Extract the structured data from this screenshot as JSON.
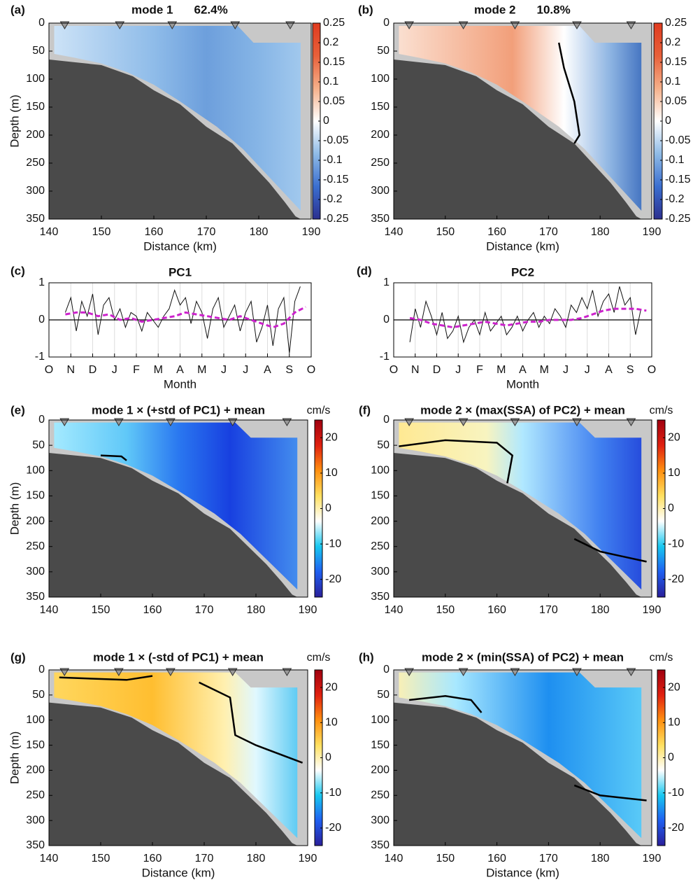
{
  "chart_data": [
    {
      "type": "contour",
      "panel": "(a)",
      "title": "mode 1",
      "variance": "62.4%",
      "xlabel": "Distance (km)",
      "ylabel": "Depth (m)",
      "xlim": [
        140,
        190
      ],
      "xticks": [
        140,
        150,
        160,
        170,
        180,
        190
      ],
      "ylim": [
        0,
        350
      ],
      "y_inverted": true,
      "yticks": [
        0,
        50,
        100,
        150,
        200,
        250,
        300,
        350
      ],
      "stations": [
        143,
        153.5,
        163.5,
        175.5,
        186
      ],
      "colorbar": {
        "lim": [
          -0.25,
          0.25
        ],
        "ticks": [
          -0.25,
          -0.2,
          -0.15,
          -0.1,
          -0.05,
          0,
          0.05,
          0.1,
          0.15,
          0.2,
          0.25
        ],
        "colors": [
          "#2b2f8f",
          "#3b6fd0",
          "#8fbbe6",
          "#ffffff",
          "#f5b08a",
          "#e8603a",
          "#e03b1f"
        ]
      }
    },
    {
      "type": "contour",
      "panel": "(b)",
      "title": "mode 2",
      "variance": "10.8%",
      "xlabel": "Distance (km)",
      "xlim": [
        140,
        190
      ],
      "xticks": [
        140,
        150,
        160,
        170,
        180,
        190
      ],
      "ylim": [
        0,
        350
      ],
      "y_inverted": true,
      "yticks": [
        0,
        50,
        100,
        150,
        200,
        250,
        300,
        350
      ],
      "stations": [
        143,
        153.5,
        163.5,
        175.5,
        186
      ],
      "colorbar": {
        "lim": [
          -0.25,
          0.25
        ],
        "ticks": [
          -0.25,
          -0.2,
          -0.15,
          -0.1,
          -0.05,
          0,
          0.05,
          0.1,
          0.15,
          0.2,
          0.25
        ],
        "colors": [
          "#2b2f8f",
          "#3b6fd0",
          "#8fbbe6",
          "#ffffff",
          "#f5b08a",
          "#e8603a",
          "#e03b1f"
        ]
      }
    },
    {
      "type": "line",
      "panel": "(c)",
      "title": "PC1",
      "xlabel": "Month",
      "xlim": [
        0,
        12
      ],
      "xticks": [
        {
          "value": 0,
          "label": "O"
        },
        {
          "value": 1,
          "label": "N"
        },
        {
          "value": 2,
          "label": "D"
        },
        {
          "value": 3,
          "label": "J"
        },
        {
          "value": 4,
          "label": "F"
        },
        {
          "value": 5,
          "label": "M"
        },
        {
          "value": 6,
          "label": "A"
        },
        {
          "value": 7,
          "label": "M"
        },
        {
          "value": 8,
          "label": "J"
        },
        {
          "value": 9,
          "label": "J"
        },
        {
          "value": 10,
          "label": "A"
        },
        {
          "value": 11,
          "label": "S"
        },
        {
          "value": 12,
          "label": "O"
        }
      ],
      "ylim": [
        -1,
        1
      ],
      "yticks": [
        -1,
        0,
        1
      ],
      "grid": true,
      "zeroline": true,
      "series": [
        {
          "color": "#111111",
          "dash": false,
          "x": [
            0.75,
            1,
            1.25,
            1.5,
            1.75,
            2,
            2.25,
            2.5,
            2.75,
            3,
            3.25,
            3.5,
            3.75,
            4,
            4.25,
            4.5,
            4.75,
            5,
            5.25,
            5.5,
            5.75,
            6,
            6.25,
            6.5,
            6.75,
            7,
            7.25,
            7.5,
            7.75,
            8,
            8.25,
            8.5,
            8.75,
            9,
            9.25,
            9.5,
            9.75,
            10,
            10.25,
            10.5,
            10.75,
            11,
            11.25,
            11.5
          ],
          "values": [
            0.2,
            0.6,
            -0.3,
            0.5,
            0.1,
            0.7,
            -0.4,
            0.4,
            0.6,
            0.0,
            0.3,
            -0.2,
            0.2,
            0.1,
            -0.3,
            0.2,
            0.0,
            -0.2,
            0.1,
            0.3,
            0.8,
            0.4,
            0.6,
            -0.1,
            0.5,
            0.2,
            -0.5,
            0.3,
            0.6,
            -0.2,
            0.1,
            0.4,
            -0.3,
            0.2,
            0.5,
            -0.6,
            -0.2,
            0.4,
            -0.7,
            0.3,
            0.6,
            -0.9,
            0.5,
            0.9
          ]
        },
        {
          "color": "#cc22cc",
          "dash": true,
          "x": [
            0.75,
            1.25,
            1.75,
            2.25,
            2.75,
            3.25,
            3.75,
            4.25,
            4.75,
            5.25,
            5.75,
            6.25,
            6.75,
            7.25,
            7.75,
            8.25,
            8.75,
            9.25,
            9.75,
            10.25,
            10.75,
            11.25,
            11.75
          ],
          "values": [
            0.15,
            0.2,
            0.2,
            0.1,
            0.15,
            0.0,
            0.05,
            -0.05,
            0.0,
            0.05,
            0.1,
            0.2,
            0.15,
            0.1,
            0.05,
            0.0,
            0.1,
            0.0,
            -0.1,
            -0.2,
            -0.1,
            0.2,
            0.35
          ]
        }
      ]
    },
    {
      "type": "line",
      "panel": "(d)",
      "title": "PC2",
      "xlabel": "Month",
      "xlim": [
        0,
        12
      ],
      "xticks": [
        {
          "value": 0,
          "label": "O"
        },
        {
          "value": 1,
          "label": "N"
        },
        {
          "value": 2,
          "label": "D"
        },
        {
          "value": 3,
          "label": "J"
        },
        {
          "value": 4,
          "label": "F"
        },
        {
          "value": 5,
          "label": "M"
        },
        {
          "value": 6,
          "label": "A"
        },
        {
          "value": 7,
          "label": "M"
        },
        {
          "value": 8,
          "label": "J"
        },
        {
          "value": 9,
          "label": "J"
        },
        {
          "value": 10,
          "label": "A"
        },
        {
          "value": 11,
          "label": "S"
        },
        {
          "value": 12,
          "label": "O"
        }
      ],
      "ylim": [
        -1,
        1
      ],
      "yticks": [
        -1,
        0,
        1
      ],
      "grid": true,
      "zeroline": true,
      "series": [
        {
          "color": "#111111",
          "dash": false,
          "x": [
            0.75,
            1,
            1.25,
            1.5,
            1.75,
            2,
            2.25,
            2.5,
            2.75,
            3,
            3.25,
            3.5,
            3.75,
            4,
            4.25,
            4.5,
            4.75,
            5,
            5.25,
            5.5,
            5.75,
            6,
            6.25,
            6.5,
            6.75,
            7,
            7.25,
            7.5,
            7.75,
            8,
            8.25,
            8.5,
            8.75,
            9,
            9.25,
            9.5,
            9.75,
            10,
            10.25,
            10.5,
            10.75,
            11,
            11.25,
            11.5
          ],
          "values": [
            -0.6,
            0.3,
            -0.2,
            0.5,
            0.1,
            -0.4,
            0.2,
            -0.5,
            -0.3,
            0.1,
            -0.6,
            -0.2,
            0.0,
            -0.4,
            0.2,
            -0.3,
            -0.1,
            0.1,
            -0.4,
            -0.2,
            0.1,
            -0.3,
            0.0,
            0.2,
            -0.2,
            0.1,
            -0.1,
            0.3,
            0.1,
            -0.2,
            0.4,
            0.2,
            0.6,
            0.3,
            0.8,
            0.1,
            0.5,
            0.7,
            0.2,
            0.9,
            0.4,
            0.6,
            -0.4,
            0.3
          ]
        },
        {
          "color": "#cc22cc",
          "dash": true,
          "x": [
            0.75,
            1.25,
            1.75,
            2.25,
            2.75,
            3.25,
            3.75,
            4.25,
            4.75,
            5.25,
            5.75,
            6.25,
            6.75,
            7.25,
            7.75,
            8.25,
            8.75,
            9.25,
            9.75,
            10.25,
            10.75,
            11.25,
            11.75
          ],
          "values": [
            0.05,
            0.0,
            -0.1,
            -0.15,
            -0.2,
            -0.15,
            -0.1,
            -0.05,
            -0.1,
            -0.15,
            -0.1,
            -0.05,
            -0.05,
            0.0,
            0.0,
            0.0,
            0.05,
            0.15,
            0.25,
            0.3,
            0.3,
            0.3,
            0.25
          ]
        }
      ]
    },
    {
      "type": "contour",
      "panel": "(e)",
      "title": "mode 1 × (+std of PC1) + mean",
      "ylabel": "Depth (m)",
      "xlim": [
        140,
        190
      ],
      "xticks": [
        140,
        150,
        160,
        170,
        180,
        190
      ],
      "ylim": [
        0,
        350
      ],
      "y_inverted": true,
      "yticks": [
        0,
        50,
        100,
        150,
        200,
        250,
        300,
        350
      ],
      "stations": [
        143,
        153.5,
        163.5,
        175.5,
        186
      ],
      "colorbar": {
        "label": "cm/s",
        "lim": [
          -25,
          25
        ],
        "ticks": [
          -20,
          -10,
          0,
          10,
          20
        ],
        "colors": [
          "#2a1f9a",
          "#1f5ff0",
          "#18c8f0",
          "#ffffff",
          "#ffe060",
          "#ff9010",
          "#e02010",
          "#a00010"
        ]
      }
    },
    {
      "type": "contour",
      "panel": "(f)",
      "title": "mode 2 × (max(SSA) of PC2) + mean",
      "xlim": [
        140,
        190
      ],
      "xticks": [
        140,
        150,
        160,
        170,
        180,
        190
      ],
      "ylim": [
        0,
        350
      ],
      "y_inverted": true,
      "yticks": [
        0,
        50,
        100,
        150,
        200,
        250,
        300,
        350
      ],
      "stations": [
        143,
        153.5,
        163.5,
        175.5,
        186
      ],
      "colorbar": {
        "label": "cm/s",
        "lim": [
          -25,
          25
        ],
        "ticks": [
          -20,
          -10,
          0,
          10,
          20
        ],
        "colors": [
          "#2a1f9a",
          "#1f5ff0",
          "#18c8f0",
          "#ffffff",
          "#ffe060",
          "#ff9010",
          "#e02010",
          "#a00010"
        ]
      }
    },
    {
      "type": "contour",
      "panel": "(g)",
      "title": "mode 1 × (-std of PC1) + mean",
      "xlabel": "Distance (km)",
      "ylabel": "Depth (m)",
      "xlim": [
        140,
        190
      ],
      "xticks": [
        140,
        150,
        160,
        170,
        180,
        190
      ],
      "ylim": [
        0,
        350
      ],
      "y_inverted": true,
      "yticks": [
        0,
        50,
        100,
        150,
        200,
        250,
        300,
        350
      ],
      "stations": [
        143,
        153.5,
        163.5,
        175.5,
        186
      ],
      "colorbar": {
        "label": "cm/s",
        "lim": [
          -25,
          25
        ],
        "ticks": [
          -20,
          -10,
          0,
          10,
          20
        ],
        "colors": [
          "#2a1f9a",
          "#1f5ff0",
          "#18c8f0",
          "#ffffff",
          "#ffe060",
          "#ff9010",
          "#e02010",
          "#a00010"
        ]
      }
    },
    {
      "type": "contour",
      "panel": "(h)",
      "title": "mode 2 × (min(SSA) of PC2) + mean",
      "xlabel": "Distance (km)",
      "xlim": [
        140,
        190
      ],
      "xticks": [
        140,
        150,
        160,
        170,
        180,
        190
      ],
      "ylim": [
        0,
        350
      ],
      "y_inverted": true,
      "yticks": [
        0,
        50,
        100,
        150,
        200,
        250,
        300,
        350
      ],
      "stations": [
        143,
        153.5,
        163.5,
        175.5,
        186
      ],
      "colorbar": {
        "label": "cm/s",
        "lim": [
          -25,
          25
        ],
        "ticks": [
          -20,
          -10,
          0,
          10,
          20
        ],
        "colors": [
          "#2a1f9a",
          "#1f5ff0",
          "#18c8f0",
          "#ffffff",
          "#ffe060",
          "#ff9010",
          "#e02010",
          "#a00010"
        ]
      }
    }
  ]
}
